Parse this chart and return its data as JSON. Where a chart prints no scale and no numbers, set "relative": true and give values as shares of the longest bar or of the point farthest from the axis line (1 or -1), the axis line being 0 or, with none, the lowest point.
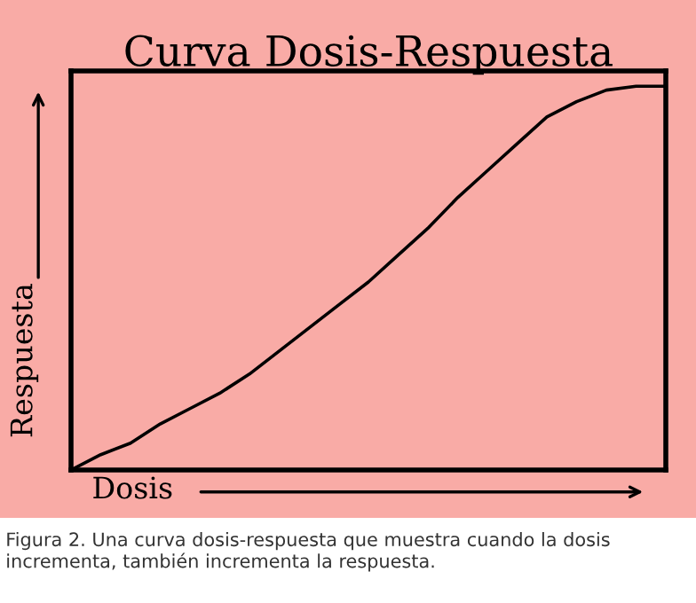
{
  "chart_data": {
    "type": "line",
    "title": "Curva Dosis-Respuesta",
    "xlabel": "Dosis",
    "ylabel": "Respuesta",
    "categories": [
      null,
      null,
      null,
      null,
      null,
      null,
      null,
      null,
      null,
      null,
      null,
      null,
      null,
      null,
      null,
      null,
      null,
      null,
      null,
      null,
      null
    ],
    "series": [
      {
        "color": "#000000",
        "values": [
          0,
          0.04,
          0.07,
          0.12,
          0.16,
          0.2,
          0.25,
          0.31,
          0.37,
          0.43,
          0.49,
          0.56,
          0.63,
          0.71,
          0.78,
          0.85,
          0.92,
          0.96,
          0.99,
          1,
          1
        ]
      }
    ],
    "relative": true,
    "legend": false,
    "tick_labels": false,
    "marker": "none",
    "line_style": "solid",
    "annotations": [
      "Figura 2. Una curva dosis-respuesta que muestra cuando la dosis incrementa, también incrementa la respuesta."
    ]
  }
}
